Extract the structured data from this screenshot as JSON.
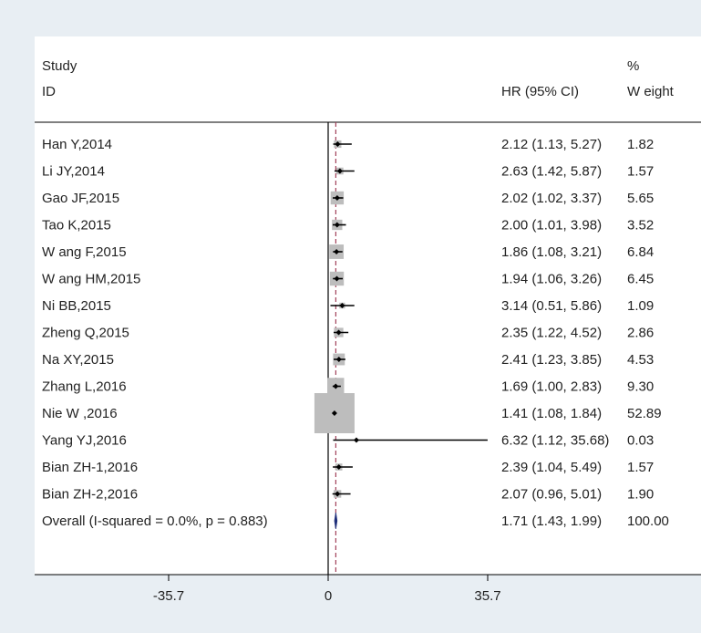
{
  "chart_data": {
    "type": "forest",
    "header": {
      "study_line1": "Study",
      "study_line2": "ID",
      "effect_label": "HR (95% CI)",
      "weight_line1": "%",
      "weight_line2": "W eight"
    },
    "studies": [
      {
        "label": "Han Y,2014",
        "hr": 2.12,
        "lo": 1.13,
        "hi": 5.27,
        "ci_text": "2.12 (1.13, 5.27)",
        "weight": 1.82,
        "weight_text": "1.82"
      },
      {
        "label": "Li JY,2014",
        "hr": 2.63,
        "lo": 1.42,
        "hi": 5.87,
        "ci_text": "2.63 (1.42, 5.87)",
        "weight": 1.57,
        "weight_text": "1.57"
      },
      {
        "label": "Gao JF,2015",
        "hr": 2.02,
        "lo": 1.02,
        "hi": 3.37,
        "ci_text": "2.02 (1.02, 3.37)",
        "weight": 5.65,
        "weight_text": "5.65"
      },
      {
        "label": "Tao K,2015",
        "hr": 2.0,
        "lo": 1.01,
        "hi": 3.98,
        "ci_text": "2.00 (1.01, 3.98)",
        "weight": 3.52,
        "weight_text": "3.52"
      },
      {
        "label": "W ang F,2015",
        "hr": 1.86,
        "lo": 1.08,
        "hi": 3.21,
        "ci_text": "1.86 (1.08, 3.21)",
        "weight": 6.84,
        "weight_text": "6.84"
      },
      {
        "label": "W ang HM,2015",
        "hr": 1.94,
        "lo": 1.06,
        "hi": 3.26,
        "ci_text": "1.94 (1.06, 3.26)",
        "weight": 6.45,
        "weight_text": "6.45"
      },
      {
        "label": "Ni BB,2015",
        "hr": 3.14,
        "lo": 0.51,
        "hi": 5.86,
        "ci_text": "3.14 (0.51, 5.86)",
        "weight": 1.09,
        "weight_text": "1.09"
      },
      {
        "label": "Zheng Q,2015",
        "hr": 2.35,
        "lo": 1.22,
        "hi": 4.52,
        "ci_text": "2.35 (1.22, 4.52)",
        "weight": 2.86,
        "weight_text": "2.86"
      },
      {
        "label": "Na XY,2015",
        "hr": 2.41,
        "lo": 1.23,
        "hi": 3.85,
        "ci_text": "2.41 (1.23, 3.85)",
        "weight": 4.53,
        "weight_text": "4.53"
      },
      {
        "label": "Zhang L,2016",
        "hr": 1.69,
        "lo": 1.0,
        "hi": 2.83,
        "ci_text": "1.69 (1.00, 2.83)",
        "weight": 9.3,
        "weight_text": "9.30"
      },
      {
        "label": "Nie W ,2016",
        "hr": 1.41,
        "lo": 1.08,
        "hi": 1.84,
        "ci_text": "1.41 (1.08, 1.84)",
        "weight": 52.89,
        "weight_text": "52.89"
      },
      {
        "label": "Yang YJ,2016",
        "hr": 6.32,
        "lo": 1.12,
        "hi": 35.68,
        "ci_text": "6.32 (1.12, 35.68)",
        "weight": 0.03,
        "weight_text": "0.03"
      },
      {
        "label": "Bian ZH-1,2016",
        "hr": 2.39,
        "lo": 1.04,
        "hi": 5.49,
        "ci_text": "2.39 (1.04, 5.49)",
        "weight": 1.57,
        "weight_text": "1.57"
      },
      {
        "label": "Bian ZH-2,2016",
        "hr": 2.07,
        "lo": 0.96,
        "hi": 5.01,
        "ci_text": "2.07 (0.96, 5.01)",
        "weight": 1.9,
        "weight_text": "1.90"
      }
    ],
    "overall": {
      "label": "Overall  (I-squared = 0.0%, p = 0.883)",
      "hr": 1.71,
      "lo": 1.43,
      "hi": 1.99,
      "ci_text": "1.71 (1.43, 1.99)",
      "weight_text": "100.00"
    },
    "xlim": [
      -35.7,
      35.7
    ],
    "xticks": [
      {
        "value": -35.7,
        "label": "-35.7"
      },
      {
        "value": 0,
        "label": "0"
      },
      {
        "value": 35.7,
        "label": "35.7"
      }
    ],
    "null_line": 0,
    "colors": {
      "background": "#e8eef3",
      "panel": "#ffffff",
      "weight_box": "#bdbdbd",
      "overall_diamond": "#1f2f7a",
      "reference_line": "#a0405a",
      "ink": "#000000"
    }
  }
}
